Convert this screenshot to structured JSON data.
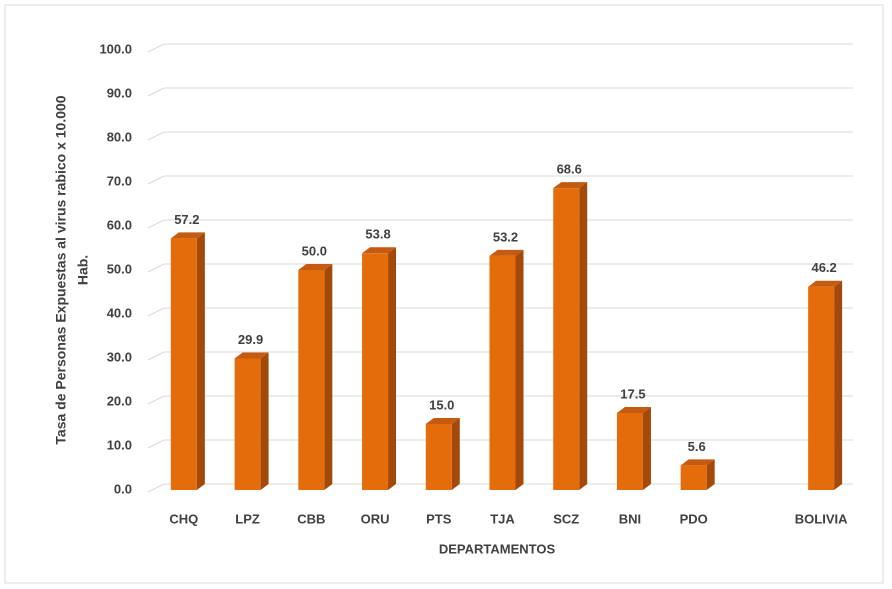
{
  "chart_data": {
    "type": "bar",
    "y_label": [
      "Tasa de Personas Expuestas al virus rabico x 10.000",
      "Hab."
    ],
    "x_label": "DEPARTAMENTOS",
    "categories": [
      "CHQ",
      "LPZ",
      "CBB",
      "ORU",
      "PTS",
      "TJA",
      "SCZ",
      "BNI",
      "PDO",
      null,
      "BOLIVIA"
    ],
    "values": [
      57.2,
      29.9,
      50,
      53.8,
      15,
      53.2,
      68.6,
      17.5,
      5.6,
      null,
      46.2
    ],
    "value_labels": [
      "57.2",
      "29.9",
      "50.0",
      "53.8",
      "15.0",
      "53.2",
      "68.6",
      "17.5",
      "5.6",
      null,
      "46.2"
    ],
    "color": "#e46c0a",
    "ylim": [
      0,
      100
    ],
    "yticks": [
      {
        "value": 0,
        "label": "0.0"
      },
      {
        "value": 10,
        "label": "10.0"
      },
      {
        "value": 20,
        "label": "20.0"
      },
      {
        "value": 30,
        "label": "30.0"
      },
      {
        "value": 40,
        "label": "40.0"
      },
      {
        "value": 50,
        "label": "50.0"
      },
      {
        "value": 60,
        "label": "60.0"
      },
      {
        "value": 70,
        "label": "70.0"
      },
      {
        "value": 80,
        "label": "80.0"
      },
      {
        "value": 90,
        "label": "90.0"
      },
      {
        "value": 100,
        "label": "100.0"
      }
    ],
    "grid": true
  }
}
